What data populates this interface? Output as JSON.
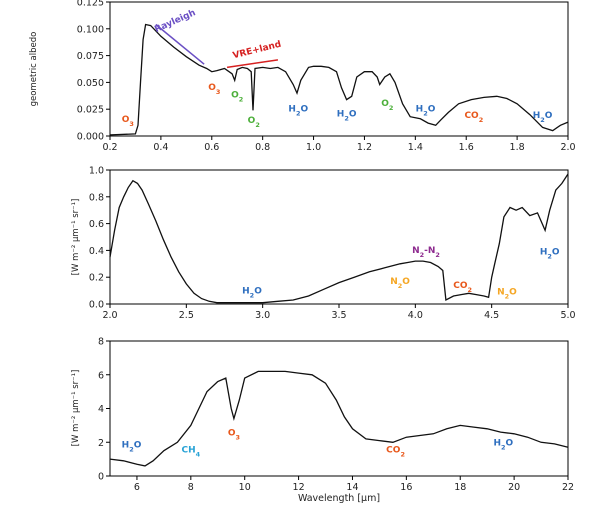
{
  "chart_data": [
    {
      "type": "line",
      "panel": "top",
      "ylabel": "geometric albedo",
      "xlabel": "",
      "xlim": [
        0.2,
        2.0
      ],
      "ylim": [
        0.0,
        0.125
      ],
      "xticks": [
        "0.2",
        "0.4",
        "0.6",
        "0.8",
        "1.0",
        "1.2",
        "1.4",
        "1.6",
        "1.8",
        "2.0"
      ],
      "yticks": [
        "0.000",
        "0.025",
        "0.050",
        "0.075",
        "0.100",
        "0.125"
      ],
      "grid": false,
      "series": [
        {
          "values": [
            [
              0.2,
              0.001
            ],
            [
              0.3,
              0.002
            ],
            [
              0.31,
              0.01
            ],
            [
              0.32,
              0.05
            ],
            [
              0.33,
              0.09
            ],
            [
              0.34,
              0.104
            ],
            [
              0.36,
              0.103
            ],
            [
              0.4,
              0.093
            ],
            [
              0.45,
              0.083
            ],
            [
              0.5,
              0.074
            ],
            [
              0.55,
              0.066
            ],
            [
              0.58,
              0.063
            ],
            [
              0.6,
              0.06
            ],
            [
              0.62,
              0.061
            ],
            [
              0.65,
              0.063
            ],
            [
              0.68,
              0.058
            ],
            [
              0.69,
              0.052
            ],
            [
              0.7,
              0.062
            ],
            [
              0.72,
              0.064
            ],
            [
              0.74,
              0.063
            ],
            [
              0.755,
              0.06
            ],
            [
              0.762,
              0.024
            ],
            [
              0.77,
              0.063
            ],
            [
              0.8,
              0.064
            ],
            [
              0.83,
              0.063
            ],
            [
              0.86,
              0.064
            ],
            [
              0.89,
              0.06
            ],
            [
              0.92,
              0.048
            ],
            [
              0.935,
              0.04
            ],
            [
              0.95,
              0.052
            ],
            [
              0.98,
              0.064
            ],
            [
              1.0,
              0.065
            ],
            [
              1.03,
              0.065
            ],
            [
              1.06,
              0.064
            ],
            [
              1.09,
              0.06
            ],
            [
              1.11,
              0.045
            ],
            [
              1.13,
              0.034
            ],
            [
              1.15,
              0.037
            ],
            [
              1.17,
              0.055
            ],
            [
              1.2,
              0.06
            ],
            [
              1.23,
              0.06
            ],
            [
              1.25,
              0.055
            ],
            [
              1.26,
              0.048
            ],
            [
              1.28,
              0.055
            ],
            [
              1.3,
              0.058
            ],
            [
              1.32,
              0.05
            ],
            [
              1.35,
              0.03
            ],
            [
              1.38,
              0.018
            ],
            [
              1.42,
              0.016
            ],
            [
              1.45,
              0.012
            ],
            [
              1.48,
              0.01
            ],
            [
              1.5,
              0.015
            ],
            [
              1.53,
              0.022
            ],
            [
              1.57,
              0.03
            ],
            [
              1.62,
              0.034
            ],
            [
              1.67,
              0.036
            ],
            [
              1.72,
              0.037
            ],
            [
              1.76,
              0.035
            ],
            [
              1.8,
              0.03
            ],
            [
              1.85,
              0.02
            ],
            [
              1.9,
              0.008
            ],
            [
              1.94,
              0.005
            ],
            [
              1.97,
              0.01
            ],
            [
              2.0,
              0.013
            ]
          ]
        }
      ],
      "annotations": [
        {
          "text": "Rayleigh",
          "color": "#6a4fc4",
          "x": 0.46,
          "y": 0.105
        },
        {
          "text": "VRE+land",
          "color": "#d62020",
          "x": 0.78,
          "y": 0.078
        },
        {
          "text": "O",
          "sub": "3",
          "color": "#e8581c",
          "x": 0.27,
          "y": 0.013
        },
        {
          "text": "O",
          "sub": "3",
          "color": "#e8581c",
          "x": 0.61,
          "y": 0.043
        },
        {
          "text": "O",
          "sub": "2",
          "color": "#4caf3a",
          "x": 0.7,
          "y": 0.036
        },
        {
          "text": "O",
          "sub": "2",
          "color": "#4caf3a",
          "x": 0.765,
          "y": 0.012
        },
        {
          "text": "O",
          "sub": "2",
          "color": "#4caf3a",
          "x": 1.29,
          "y": 0.028
        },
        {
          "text": "H",
          "sub": "2",
          "tail": "O",
          "color": "#2f6fbf",
          "x": 0.94,
          "y": 0.023
        },
        {
          "text": "H",
          "sub": "2",
          "tail": "O",
          "color": "#2f6fbf",
          "x": 1.13,
          "y": 0.018
        },
        {
          "text": "H",
          "sub": "2",
          "tail": "O",
          "color": "#2f6fbf",
          "x": 1.44,
          "y": 0.023
        },
        {
          "text": "CO",
          "sub": "2",
          "color": "#e8581c",
          "x": 1.63,
          "y": 0.017
        },
        {
          "text": "H",
          "sub": "2",
          "tail": "O",
          "color": "#2f6fbf",
          "x": 1.9,
          "y": 0.017
        }
      ],
      "marks": [
        {
          "type": "line",
          "color": "#6a4fc4",
          "from": [
            0.38,
            0.104
          ],
          "to": [
            0.57,
            0.067
          ]
        },
        {
          "type": "line",
          "color": "#d62020",
          "from": [
            0.66,
            0.064
          ],
          "to": [
            0.86,
            0.071
          ]
        }
      ]
    },
    {
      "type": "line",
      "panel": "middle",
      "ylabel": "[W m⁻² μm⁻¹ sr⁻¹]",
      "xlabel": "",
      "xlim": [
        2.0,
        5.0
      ],
      "ylim": [
        0.0,
        1.0
      ],
      "xticks": [
        "2.0",
        "2.5",
        "3.0",
        "3.5",
        "4.0",
        "4.5",
        "5.0"
      ],
      "yticks": [
        "0.0",
        "0.2",
        "0.4",
        "0.6",
        "0.8",
        "1.0"
      ],
      "grid": false,
      "series": [
        {
          "values": [
            [
              2.0,
              0.35
            ],
            [
              2.03,
              0.55
            ],
            [
              2.06,
              0.72
            ],
            [
              2.09,
              0.8
            ],
            [
              2.12,
              0.87
            ],
            [
              2.15,
              0.92
            ],
            [
              2.18,
              0.9
            ],
            [
              2.21,
              0.85
            ],
            [
              2.25,
              0.75
            ],
            [
              2.3,
              0.62
            ],
            [
              2.35,
              0.48
            ],
            [
              2.4,
              0.35
            ],
            [
              2.45,
              0.24
            ],
            [
              2.5,
              0.15
            ],
            [
              2.55,
              0.08
            ],
            [
              2.6,
              0.04
            ],
            [
              2.65,
              0.02
            ],
            [
              2.7,
              0.01
            ],
            [
              2.8,
              0.01
            ],
            [
              2.9,
              0.01
            ],
            [
              3.0,
              0.01
            ],
            [
              3.1,
              0.02
            ],
            [
              3.2,
              0.03
            ],
            [
              3.3,
              0.06
            ],
            [
              3.4,
              0.11
            ],
            [
              3.5,
              0.16
            ],
            [
              3.6,
              0.2
            ],
            [
              3.7,
              0.24
            ],
            [
              3.8,
              0.27
            ],
            [
              3.9,
              0.3
            ],
            [
              3.95,
              0.31
            ],
            [
              4.0,
              0.32
            ],
            [
              4.05,
              0.32
            ],
            [
              4.1,
              0.31
            ],
            [
              4.15,
              0.28
            ],
            [
              4.18,
              0.25
            ],
            [
              4.2,
              0.03
            ],
            [
              4.25,
              0.06
            ],
            [
              4.3,
              0.07
            ],
            [
              4.35,
              0.08
            ],
            [
              4.4,
              0.07
            ],
            [
              4.45,
              0.06
            ],
            [
              4.48,
              0.05
            ],
            [
              4.5,
              0.2
            ],
            [
              4.52,
              0.3
            ],
            [
              4.55,
              0.45
            ],
            [
              4.58,
              0.65
            ],
            [
              4.62,
              0.72
            ],
            [
              4.66,
              0.7
            ],
            [
              4.7,
              0.72
            ],
            [
              4.75,
              0.66
            ],
            [
              4.8,
              0.68
            ],
            [
              4.85,
              0.55
            ],
            [
              4.88,
              0.7
            ],
            [
              4.92,
              0.85
            ],
            [
              4.96,
              0.9
            ],
            [
              5.0,
              0.97
            ]
          ]
        }
      ],
      "annotations": [
        {
          "text": "N",
          "sub": "2",
          "tail": "-N",
          "sub2": "2",
          "color": "#8e2b8f",
          "x": 4.07,
          "y": 0.38
        },
        {
          "text": "N",
          "sub": "2",
          "tail": "O",
          "color": "#f5a623",
          "x": 3.9,
          "y": 0.15
        },
        {
          "text": "CO",
          "sub": "2",
          "color": "#e8581c",
          "x": 4.31,
          "y": 0.12
        },
        {
          "text": "N",
          "sub": "2",
          "tail": "O",
          "color": "#f5a623",
          "x": 4.6,
          "y": 0.07
        },
        {
          "text": "H",
          "sub": "2",
          "tail": "O",
          "color": "#2f6fbf",
          "x": 2.93,
          "y": 0.08
        },
        {
          "text": "H",
          "sub": "2",
          "tail": "O",
          "color": "#2f6fbf",
          "x": 4.88,
          "y": 0.37
        }
      ]
    },
    {
      "type": "line",
      "panel": "bottom",
      "ylabel": "[W m⁻² μm⁻¹ sr⁻¹]",
      "xlabel": "Wavelength [μm]",
      "xlim": [
        5,
        22
      ],
      "ylim": [
        0,
        8
      ],
      "xticks": [
        "6",
        "8",
        "10",
        "12",
        "14",
        "16",
        "18",
        "20",
        "22"
      ],
      "yticks": [
        "0",
        "2",
        "4",
        "6",
        "8"
      ],
      "grid": false,
      "series": [
        {
          "values": [
            [
              5.0,
              1.0
            ],
            [
              5.5,
              0.9
            ],
            [
              6.0,
              0.7
            ],
            [
              6.3,
              0.6
            ],
            [
              6.6,
              0.9
            ],
            [
              7.0,
              1.5
            ],
            [
              7.5,
              2.0
            ],
            [
              8.0,
              3.0
            ],
            [
              8.3,
              4.0
            ],
            [
              8.6,
              5.0
            ],
            [
              9.0,
              5.6
            ],
            [
              9.3,
              5.8
            ],
            [
              9.5,
              4.0
            ],
            [
              9.6,
              3.4
            ],
            [
              9.8,
              4.5
            ],
            [
              10.0,
              5.8
            ],
            [
              10.5,
              6.2
            ],
            [
              11.0,
              6.2
            ],
            [
              11.5,
              6.2
            ],
            [
              12.0,
              6.1
            ],
            [
              12.5,
              6.0
            ],
            [
              13.0,
              5.5
            ],
            [
              13.4,
              4.5
            ],
            [
              13.7,
              3.5
            ],
            [
              14.0,
              2.8
            ],
            [
              14.5,
              2.2
            ],
            [
              15.0,
              2.1
            ],
            [
              15.5,
              2.0
            ],
            [
              16.0,
              2.3
            ],
            [
              16.5,
              2.4
            ],
            [
              17.0,
              2.5
            ],
            [
              17.5,
              2.8
            ],
            [
              18.0,
              3.0
            ],
            [
              18.5,
              2.9
            ],
            [
              19.0,
              2.8
            ],
            [
              19.5,
              2.6
            ],
            [
              20.0,
              2.5
            ],
            [
              20.5,
              2.3
            ],
            [
              21.0,
              2.0
            ],
            [
              21.5,
              1.9
            ],
            [
              22.0,
              1.7
            ]
          ]
        }
      ],
      "annotations": [
        {
          "text": "H",
          "sub": "2",
          "tail": "O",
          "color": "#2f6fbf",
          "x": 5.8,
          "y": 1.7
        },
        {
          "text": "CH",
          "sub": "4",
          "color": "#29a3d6",
          "x": 8.0,
          "y": 1.4
        },
        {
          "text": "O",
          "sub": "3",
          "color": "#e8581c",
          "x": 9.6,
          "y": 2.4
        },
        {
          "text": "CO",
          "sub": "2",
          "color": "#e8581c",
          "x": 15.6,
          "y": 1.4
        },
        {
          "text": "H",
          "sub": "2",
          "tail": "O",
          "color": "#2f6fbf",
          "x": 19.6,
          "y": 1.8
        }
      ]
    }
  ],
  "colors": {
    "axis": "#000000",
    "line": "#111111"
  }
}
